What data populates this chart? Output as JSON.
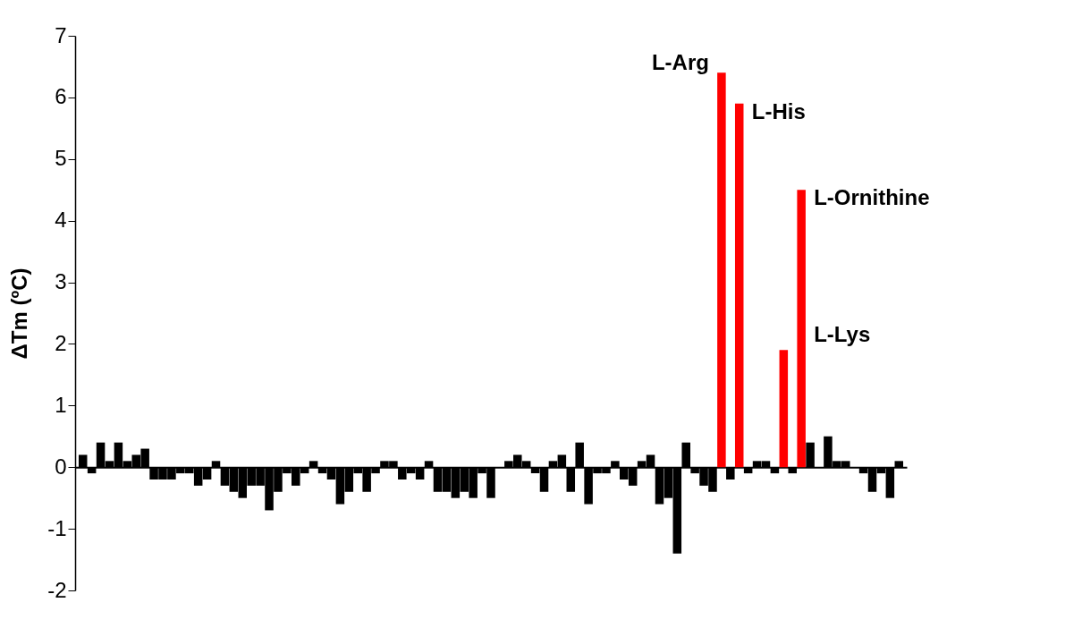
{
  "chart_data": {
    "type": "bar",
    "ylabel": "ΔTm (ºC)",
    "categories": [
      null,
      null,
      null,
      null,
      null,
      null,
      null,
      null,
      null,
      null,
      null,
      null,
      null,
      null,
      null,
      null,
      null,
      null,
      null,
      null,
      null,
      null,
      null,
      null,
      null,
      null,
      null,
      null,
      null,
      null,
      null,
      null,
      null,
      null,
      null,
      null,
      null,
      null,
      null,
      null,
      null,
      null,
      null,
      null,
      null,
      null,
      null,
      null,
      null,
      null,
      null,
      null,
      null,
      null,
      null,
      null,
      null,
      null,
      null,
      null,
      null,
      null,
      null,
      null,
      null,
      null,
      null,
      null,
      null,
      null,
      null,
      null,
      null,
      null,
      null,
      null,
      null,
      null,
      null,
      null,
      null,
      null,
      null,
      null,
      null,
      null,
      null,
      null,
      null,
      null,
      null,
      null,
      null
    ],
    "values": [
      0.2,
      -0.1,
      0.4,
      0.1,
      0.4,
      0.1,
      0.2,
      0.3,
      -0.2,
      -0.2,
      -0.2,
      -0.1,
      -0.1,
      -0.3,
      -0.2,
      0.1,
      -0.3,
      -0.4,
      -0.5,
      -0.3,
      -0.3,
      -0.7,
      -0.4,
      -0.1,
      -0.3,
      -0.1,
      0.1,
      -0.1,
      -0.2,
      -0.6,
      -0.4,
      -0.1,
      -0.4,
      -0.1,
      0.1,
      0.1,
      -0.2,
      -0.1,
      -0.2,
      0.1,
      -0.4,
      -0.4,
      -0.5,
      -0.4,
      -0.5,
      -0.1,
      -0.5,
      0,
      0.1,
      0.2,
      0.1,
      -0.1,
      -0.4,
      0.1,
      0.2,
      -0.4,
      0.4,
      -0.6,
      -0.1,
      -0.1,
      0.1,
      -0.2,
      -0.3,
      0.1,
      0.2,
      -0.6,
      -0.5,
      -1.4,
      0.4,
      -0.1,
      -0.3,
      -0.4,
      6.4,
      -0.2,
      5.9,
      -0.1,
      0.1,
      0.1,
      -0.1,
      1.9,
      -0.1,
      4.5,
      0.4,
      0,
      0.5,
      0.1,
      0.1,
      0,
      -0.1,
      -0.4,
      -0.1,
      -0.5,
      0.1
    ],
    "colors": [
      "#000000",
      "#000000",
      "#000000",
      "#000000",
      "#000000",
      "#000000",
      "#000000",
      "#000000",
      "#000000",
      "#000000",
      "#000000",
      "#000000",
      "#000000",
      "#000000",
      "#000000",
      "#000000",
      "#000000",
      "#000000",
      "#000000",
      "#000000",
      "#000000",
      "#000000",
      "#000000",
      "#000000",
      "#000000",
      "#000000",
      "#000000",
      "#000000",
      "#000000",
      "#000000",
      "#000000",
      "#000000",
      "#000000",
      "#000000",
      "#000000",
      "#000000",
      "#000000",
      "#000000",
      "#000000",
      "#000000",
      "#000000",
      "#000000",
      "#000000",
      "#000000",
      "#000000",
      "#000000",
      "#000000",
      "#000000",
      "#000000",
      "#000000",
      "#000000",
      "#000000",
      "#000000",
      "#000000",
      "#000000",
      "#000000",
      "#000000",
      "#000000",
      "#000000",
      "#000000",
      "#000000",
      "#000000",
      "#000000",
      "#000000",
      "#000000",
      "#000000",
      "#000000",
      "#000000",
      "#000000",
      "#000000",
      "#000000",
      "#000000",
      "#ff0000",
      "#000000",
      "#ff0000",
      "#000000",
      "#000000",
      "#000000",
      "#000000",
      "#ff0000",
      "#000000",
      "#ff0000",
      "#000000",
      "#000000",
      "#000000",
      "#000000",
      "#000000",
      "#000000",
      "#000000",
      "#000000",
      "#000000",
      "#000000",
      "#000000"
    ],
    "ylim": [
      -2,
      7
    ],
    "yticks": [
      -2,
      -1,
      0,
      1,
      2,
      3,
      4,
      5,
      6,
      7
    ],
    "annotations": [
      "L-Arg",
      "L-His",
      "L-Lys",
      "L-Ornithine"
    ]
  }
}
